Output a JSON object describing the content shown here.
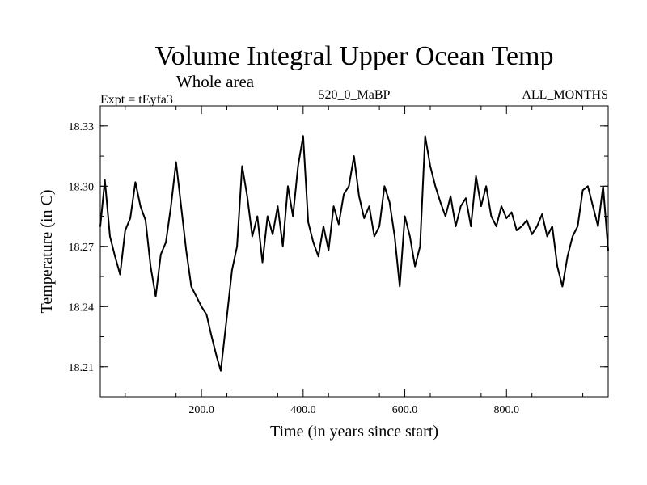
{
  "chart_data": {
    "type": "line",
    "title": "Volume Integral Upper Ocean Temp",
    "subtitle": "Whole area",
    "experiment": "Expt = tEyfa3",
    "run_label": "520_0_MaBP",
    "months_label": "ALL_MONTHS",
    "xlabel": "Time (in years since start)",
    "ylabel": "Temperature (in C)",
    "xlim": [
      1,
      1000
    ],
    "ylim": [
      18.195,
      18.34
    ],
    "xticks": [
      200,
      400,
      600,
      800
    ],
    "xtick_labels": [
      "200.0",
      "400.0",
      "600.0",
      "800.0"
    ],
    "yticks": [
      18.21,
      18.24,
      18.27,
      18.3,
      18.33
    ],
    "ytick_labels": [
      "18.21",
      "18.24",
      "18.27",
      "18.30",
      "18.33"
    ],
    "grid": false,
    "series": [
      {
        "name": "Temperature",
        "x": [
          1,
          10,
          20,
          30,
          40,
          50,
          60,
          70,
          80,
          90,
          100,
          110,
          120,
          130,
          140,
          150,
          160,
          170,
          180,
          190,
          200,
          210,
          220,
          230,
          238,
          250,
          260,
          270,
          280,
          290,
          300,
          310,
          320,
          330,
          340,
          350,
          360,
          370,
          380,
          390,
          400,
          410,
          420,
          430,
          440,
          450,
          460,
          470,
          480,
          490,
          500,
          510,
          520,
          530,
          540,
          550,
          560,
          570,
          580,
          590,
          600,
          610,
          620,
          630,
          640,
          650,
          660,
          670,
          680,
          690,
          700,
          710,
          720,
          730,
          740,
          750,
          760,
          770,
          780,
          790,
          800,
          810,
          820,
          830,
          840,
          850,
          860,
          870,
          880,
          890,
          900,
          910,
          920,
          930,
          940,
          950,
          960,
          970,
          980,
          990,
          1000
        ],
        "values": [
          18.28,
          18.303,
          18.275,
          18.265,
          18.256,
          18.278,
          18.284,
          18.302,
          18.29,
          18.283,
          18.26,
          18.245,
          18.266,
          18.272,
          18.29,
          18.312,
          18.29,
          18.268,
          18.25,
          18.245,
          18.24,
          18.236,
          18.225,
          18.215,
          18.208,
          18.235,
          18.258,
          18.27,
          18.31,
          18.295,
          18.275,
          18.285,
          18.262,
          18.285,
          18.276,
          18.29,
          18.27,
          18.3,
          18.285,
          18.31,
          18.325,
          18.282,
          18.272,
          18.265,
          18.28,
          18.268,
          18.29,
          18.281,
          18.296,
          18.3,
          18.315,
          18.295,
          18.284,
          18.29,
          18.275,
          18.28,
          18.3,
          18.292,
          18.275,
          18.25,
          18.285,
          18.275,
          18.26,
          18.27,
          18.325,
          18.31,
          18.3,
          18.292,
          18.285,
          18.295,
          18.28,
          18.29,
          18.294,
          18.28,
          18.305,
          18.29,
          18.3,
          18.285,
          18.28,
          18.29,
          18.284,
          18.287,
          18.278,
          18.28,
          18.283,
          18.276,
          18.28,
          18.286,
          18.275,
          18.28,
          18.26,
          18.25,
          18.265,
          18.275,
          18.28,
          18.298,
          18.3,
          18.29,
          18.28,
          18.3,
          18.268
        ]
      }
    ]
  }
}
